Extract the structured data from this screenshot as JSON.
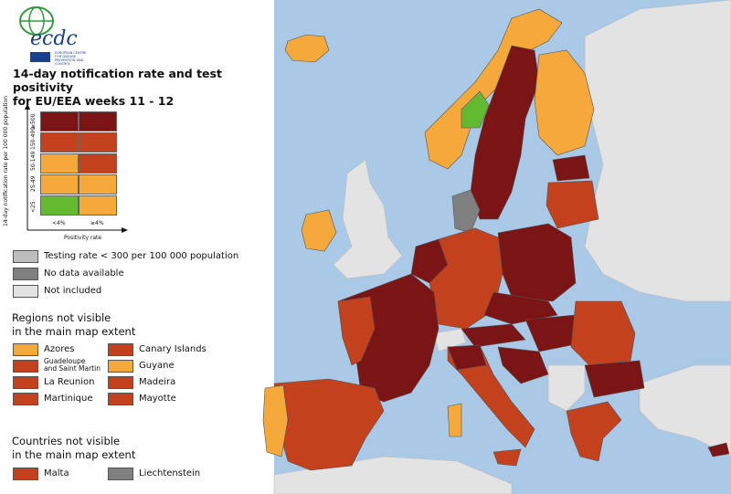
{
  "header": {
    "logo_text": "ecdc",
    "logo_subtext": "EUROPEAN CENTRE FOR DISEASE PREVENTION AND CONTROL",
    "title_line1": "14-day notification rate and test positivity",
    "title_line2": "for EU/EEA weeks 11 - 12"
  },
  "matrix": {
    "y_axis_label": "14-day notification rate per 100 000 population",
    "y_ticks": [
      "≥500",
      "150-499",
      "50-149",
      "25-49",
      "<25"
    ],
    "x_ticks": [
      "<4%",
      "≥4%"
    ],
    "x_axis_label": "Positivity rate",
    "colors": [
      [
        "#7b1414",
        "#7b1414"
      ],
      [
        "#c4411d",
        "#c4411d"
      ],
      [
        "#f4a93a",
        "#c4411d"
      ],
      [
        "#f4a93a",
        "#f4a93a"
      ],
      [
        "#63b930",
        "#f4a93a"
      ]
    ]
  },
  "legend": {
    "testing_low": "Testing rate < 300 per 100 000 population",
    "no_data": "No data available",
    "not_included": "Not included",
    "colors": {
      "testing_low": "#bdbdbd",
      "no_data": "#808080",
      "not_included": "#e3e3e3"
    }
  },
  "regions": {
    "heading_line1": "Regions not visible",
    "heading_line2": "in the main map extent",
    "items": [
      {
        "label": "Azores",
        "color": "#f4a93a"
      },
      {
        "label": "Canary Islands",
        "color": "#c4411d"
      },
      {
        "label_line1": "Guadeloupe",
        "label_line2": "and Saint Martin",
        "color": "#c4411d"
      },
      {
        "label": "Guyane",
        "color": "#f4a93a"
      },
      {
        "label": "La Reunion",
        "color": "#c4411d"
      },
      {
        "label": "Madeira",
        "color": "#c4411d"
      },
      {
        "label": "Martinique",
        "color": "#c4411d"
      },
      {
        "label": "Mayotte",
        "color": "#c4411d"
      }
    ]
  },
  "countries": {
    "heading_line1": "Countries not visible",
    "heading_line2": "in the main map extent",
    "items": [
      {
        "label": "Malta",
        "color": "#c4411d"
      },
      {
        "label": "Liechtenstein",
        "color": "#808080"
      }
    ]
  },
  "map_colors": {
    "sea": "#a9c9e6",
    "non_eu": "#e3e3e3",
    "very_high": "#7b1414",
    "high": "#c4411d",
    "moderate": "#f4a93a",
    "low": "#63b930",
    "testing_low": "#bdbdbd",
    "no_data": "#808080"
  }
}
